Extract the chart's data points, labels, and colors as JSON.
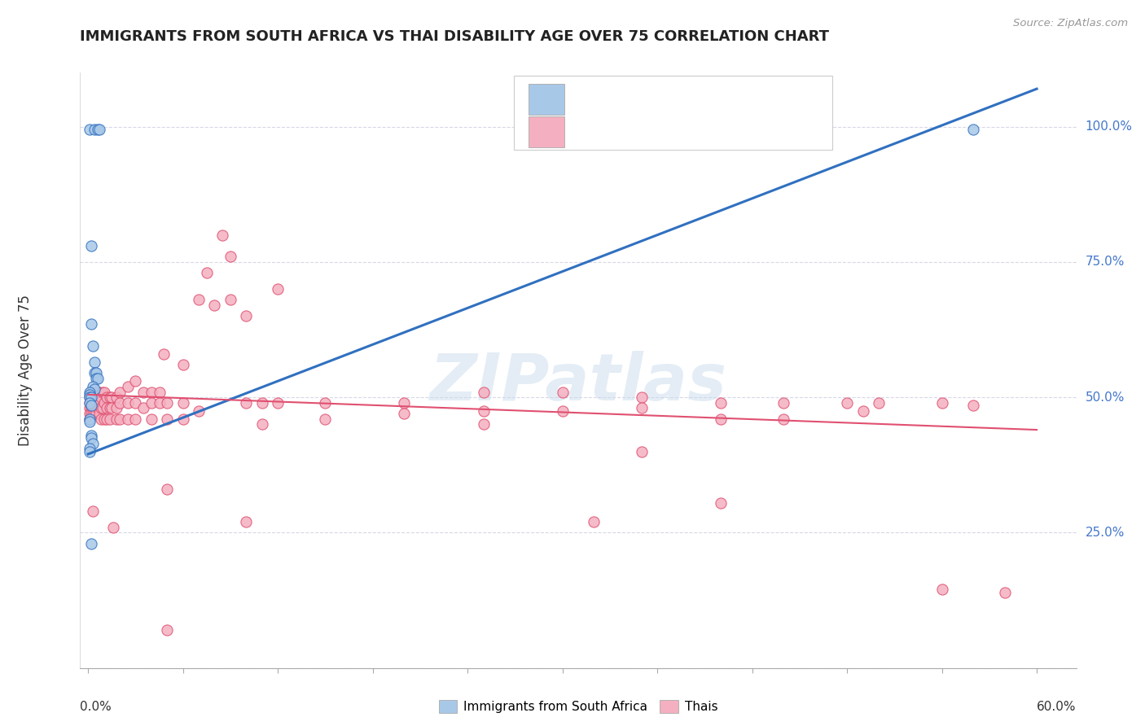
{
  "title": "IMMIGRANTS FROM SOUTH AFRICA VS THAI DISABILITY AGE OVER 75 CORRELATION CHART",
  "source": "Source: ZipAtlas.com",
  "ylabel": "Disability Age Over 75",
  "watermark": "ZIPatlas",
  "blue_scatter": [
    [
      0.001,
      0.995
    ],
    [
      0.004,
      0.995
    ],
    [
      0.006,
      0.995
    ],
    [
      0.007,
      0.995
    ],
    [
      0.002,
      0.78
    ],
    [
      0.002,
      0.635
    ],
    [
      0.003,
      0.595
    ],
    [
      0.004,
      0.565
    ],
    [
      0.004,
      0.545
    ],
    [
      0.005,
      0.545
    ],
    [
      0.005,
      0.535
    ],
    [
      0.006,
      0.535
    ],
    [
      0.003,
      0.52
    ],
    [
      0.004,
      0.515
    ],
    [
      0.001,
      0.51
    ],
    [
      0.001,
      0.505
    ],
    [
      0.001,
      0.5
    ],
    [
      0.002,
      0.5
    ],
    [
      0.001,
      0.49
    ],
    [
      0.002,
      0.485
    ],
    [
      0.001,
      0.46
    ],
    [
      0.001,
      0.455
    ],
    [
      0.002,
      0.43
    ],
    [
      0.002,
      0.425
    ],
    [
      0.003,
      0.415
    ],
    [
      0.001,
      0.405
    ],
    [
      0.001,
      0.4
    ],
    [
      0.002,
      0.23
    ],
    [
      0.56,
      0.995
    ]
  ],
  "pink_scatter": [
    [
      0.001,
      0.5
    ],
    [
      0.001,
      0.49
    ],
    [
      0.001,
      0.48
    ],
    [
      0.001,
      0.47
    ],
    [
      0.001,
      0.46
    ],
    [
      0.002,
      0.51
    ],
    [
      0.002,
      0.5
    ],
    [
      0.002,
      0.49
    ],
    [
      0.002,
      0.48
    ],
    [
      0.002,
      0.47
    ],
    [
      0.003,
      0.51
    ],
    [
      0.003,
      0.5
    ],
    [
      0.003,
      0.49
    ],
    [
      0.003,
      0.48
    ],
    [
      0.003,
      0.47
    ],
    [
      0.003,
      0.29
    ],
    [
      0.004,
      0.51
    ],
    [
      0.004,
      0.5
    ],
    [
      0.004,
      0.49
    ],
    [
      0.004,
      0.48
    ],
    [
      0.004,
      0.47
    ],
    [
      0.005,
      0.51
    ],
    [
      0.005,
      0.5
    ],
    [
      0.005,
      0.49
    ],
    [
      0.005,
      0.48
    ],
    [
      0.005,
      0.47
    ],
    [
      0.006,
      0.51
    ],
    [
      0.006,
      0.5
    ],
    [
      0.006,
      0.49
    ],
    [
      0.006,
      0.48
    ],
    [
      0.007,
      0.51
    ],
    [
      0.007,
      0.49
    ],
    [
      0.007,
      0.47
    ],
    [
      0.008,
      0.5
    ],
    [
      0.008,
      0.48
    ],
    [
      0.008,
      0.46
    ],
    [
      0.009,
      0.51
    ],
    [
      0.009,
      0.48
    ],
    [
      0.01,
      0.51
    ],
    [
      0.01,
      0.49
    ],
    [
      0.01,
      0.46
    ],
    [
      0.012,
      0.5
    ],
    [
      0.012,
      0.48
    ],
    [
      0.012,
      0.46
    ],
    [
      0.014,
      0.5
    ],
    [
      0.014,
      0.48
    ],
    [
      0.014,
      0.46
    ],
    [
      0.015,
      0.5
    ],
    [
      0.015,
      0.48
    ],
    [
      0.016,
      0.26
    ],
    [
      0.018,
      0.5
    ],
    [
      0.018,
      0.48
    ],
    [
      0.018,
      0.46
    ],
    [
      0.02,
      0.51
    ],
    [
      0.02,
      0.49
    ],
    [
      0.02,
      0.46
    ],
    [
      0.025,
      0.52
    ],
    [
      0.025,
      0.49
    ],
    [
      0.025,
      0.46
    ],
    [
      0.03,
      0.53
    ],
    [
      0.03,
      0.49
    ],
    [
      0.03,
      0.46
    ],
    [
      0.035,
      0.51
    ],
    [
      0.035,
      0.48
    ],
    [
      0.04,
      0.51
    ],
    [
      0.04,
      0.49
    ],
    [
      0.04,
      0.46
    ],
    [
      0.045,
      0.51
    ],
    [
      0.045,
      0.49
    ],
    [
      0.048,
      0.58
    ],
    [
      0.05,
      0.49
    ],
    [
      0.05,
      0.46
    ],
    [
      0.05,
      0.33
    ],
    [
      0.05,
      0.07
    ],
    [
      0.06,
      0.56
    ],
    [
      0.06,
      0.49
    ],
    [
      0.06,
      0.46
    ],
    [
      0.07,
      0.68
    ],
    [
      0.07,
      0.475
    ],
    [
      0.075,
      0.73
    ],
    [
      0.08,
      0.67
    ],
    [
      0.085,
      0.8
    ],
    [
      0.09,
      0.76
    ],
    [
      0.09,
      0.68
    ],
    [
      0.1,
      0.65
    ],
    [
      0.1,
      0.49
    ],
    [
      0.11,
      0.49
    ],
    [
      0.11,
      0.45
    ],
    [
      0.12,
      0.7
    ],
    [
      0.12,
      0.49
    ],
    [
      0.15,
      0.49
    ],
    [
      0.15,
      0.46
    ],
    [
      0.2,
      0.49
    ],
    [
      0.2,
      0.47
    ],
    [
      0.25,
      0.51
    ],
    [
      0.25,
      0.475
    ],
    [
      0.25,
      0.45
    ],
    [
      0.3,
      0.51
    ],
    [
      0.3,
      0.475
    ],
    [
      0.32,
      0.27
    ],
    [
      0.35,
      0.5
    ],
    [
      0.35,
      0.48
    ],
    [
      0.35,
      0.4
    ],
    [
      0.4,
      0.49
    ],
    [
      0.4,
      0.46
    ],
    [
      0.4,
      0.305
    ],
    [
      0.44,
      0.49
    ],
    [
      0.44,
      0.46
    ],
    [
      0.48,
      0.49
    ],
    [
      0.49,
      0.475
    ],
    [
      0.5,
      0.49
    ],
    [
      0.54,
      0.49
    ],
    [
      0.54,
      0.145
    ],
    [
      0.56,
      0.485
    ],
    [
      0.1,
      0.27
    ],
    [
      0.58,
      0.14
    ]
  ],
  "blue_line": [
    [
      0.0,
      0.395
    ],
    [
      0.6,
      1.07
    ]
  ],
  "pink_line": [
    [
      0.0,
      0.505
    ],
    [
      0.6,
      0.44
    ]
  ],
  "blue_color": "#a8c8e8",
  "pink_color": "#f4b0c0",
  "blue_line_color": "#3070c0",
  "pink_line_color": "#e05070",
  "background_color": "#ffffff",
  "grid_color": "#d8d8e8",
  "xlim": [
    -0.005,
    0.625
  ],
  "ylim": [
    0.0,
    1.1
  ],
  "ytick_vals": [
    0.25,
    0.5,
    0.75,
    1.0
  ],
  "ytick_labels": [
    "25.0%",
    "50.0%",
    "75.0%",
    "100.0%"
  ],
  "xtick_vals": [
    0.0,
    0.06,
    0.12,
    0.18,
    0.24,
    0.3,
    0.36,
    0.42,
    0.48,
    0.54,
    0.6
  ]
}
